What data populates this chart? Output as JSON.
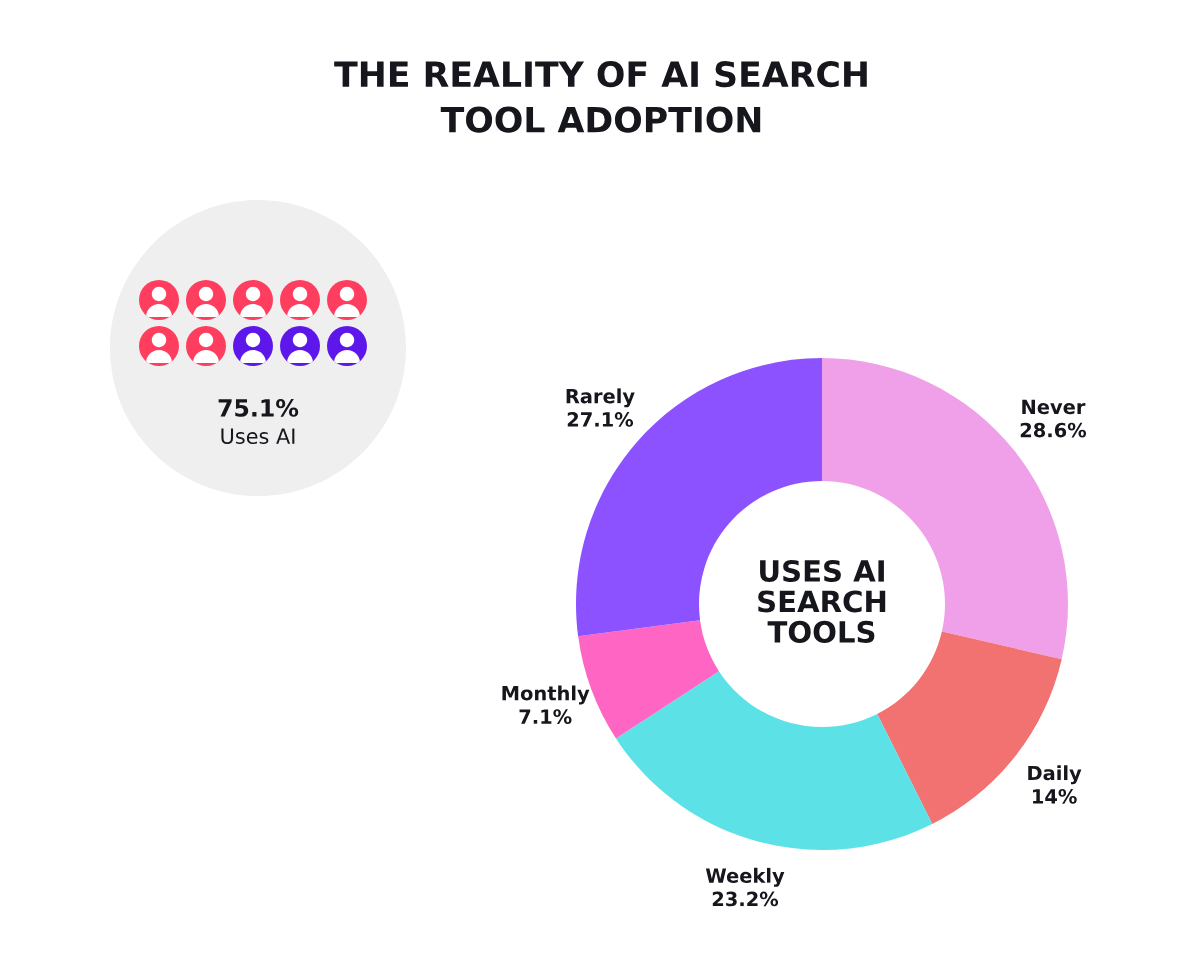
{
  "chart_data": {
    "type": "donut",
    "title": "THE REALITY OF AI SEARCH\nTOOL ADOPTION",
    "categories": [
      "Never",
      "Daily",
      "Weekly",
      "Monthly",
      "Rarely"
    ],
    "values": [
      28.6,
      14,
      23.2,
      7.1,
      27.1
    ],
    "value_labels": [
      "28.6%",
      "14%",
      "23.2%",
      "7.1%",
      "27.1%"
    ],
    "colors": [
      "#efa0e8",
      "#f27171",
      "#5ce1e6",
      "#ff66c4",
      "#8c52ff"
    ],
    "annotations": [
      "USES AI\nSEARCH\nTOOLS",
      "75.1%",
      "Uses AI"
    ],
    "legend": false
  }
}
